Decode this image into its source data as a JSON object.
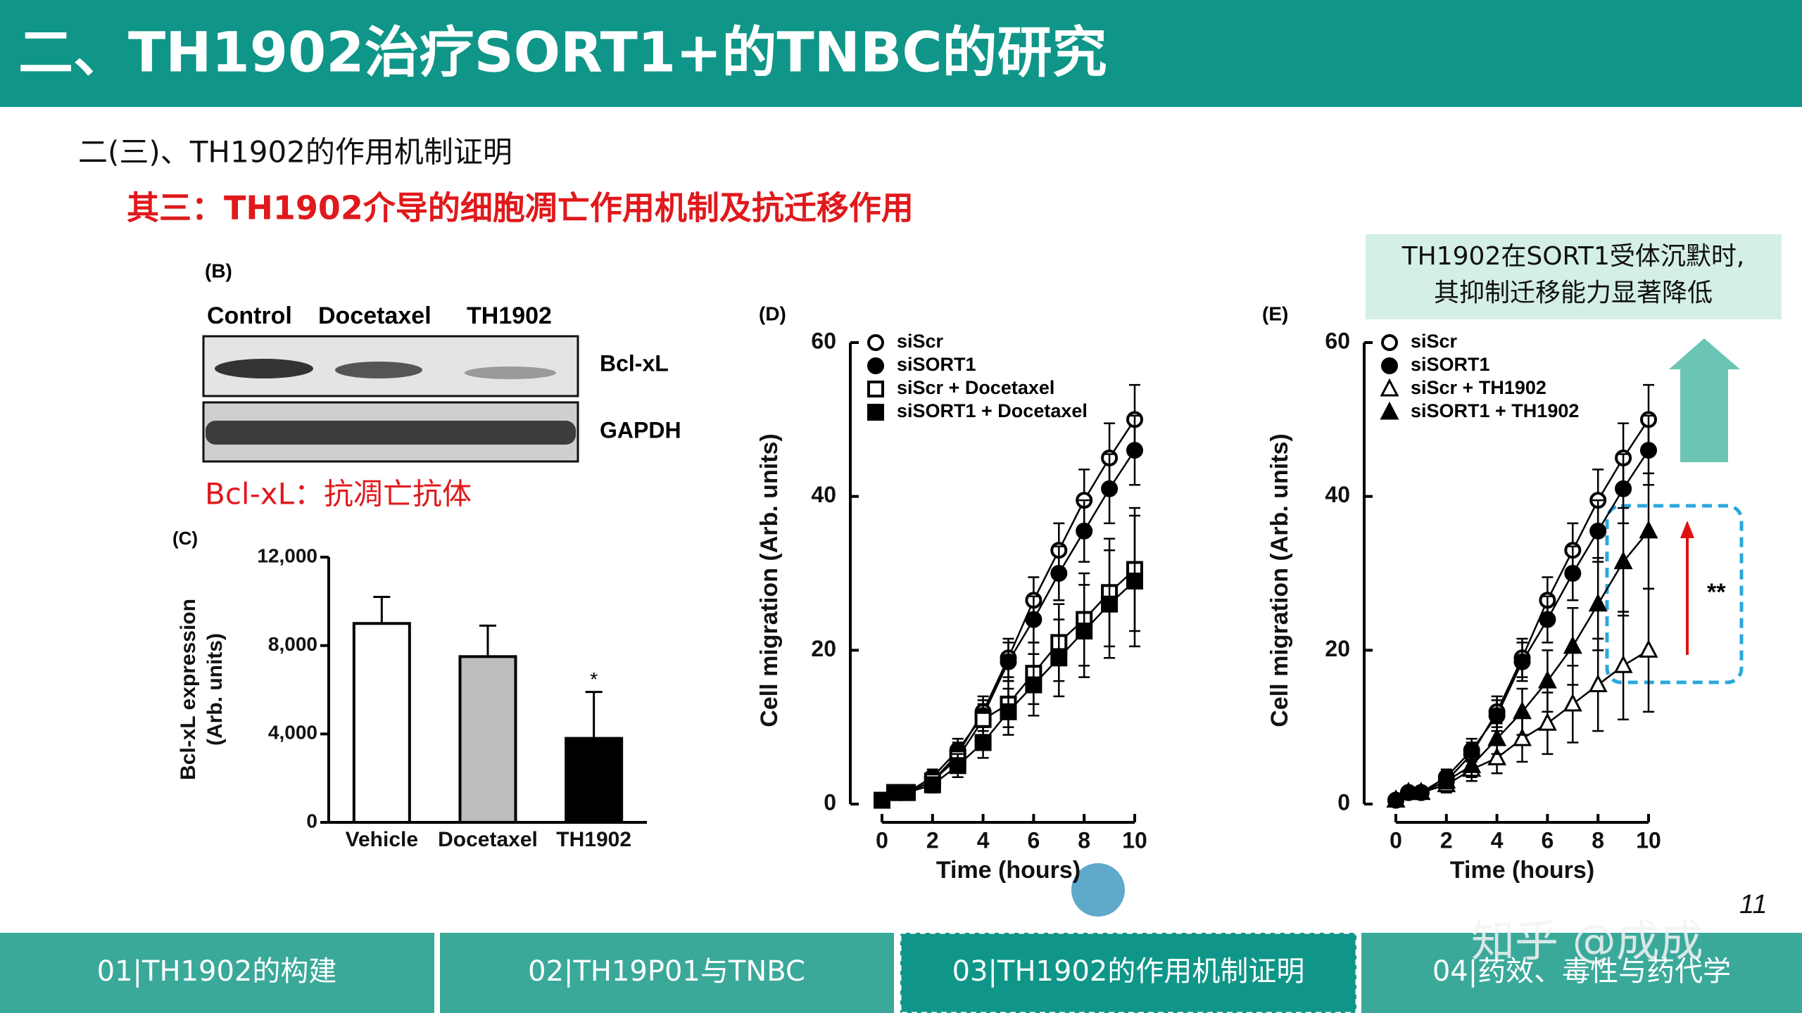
{
  "header": {
    "title": "二、TH1902治疗SORT1+的TNBC的研究"
  },
  "subtitle": "二(三)、TH1902的作用机制证明",
  "heading": "其三：TH1902介导的细胞凋亡作用机制及抗迁移作用",
  "callout": [
    "TH1902在SORT1受体沉默时,",
    "其抑制迁移能力显著降低"
  ],
  "blot": {
    "panel": "(B)",
    "lanes": [
      "Control",
      "Docetaxel",
      "TH1902"
    ],
    "bands": [
      "Bcl-xL",
      "GAPDH"
    ],
    "caption": "Bcl-xL：抗凋亡抗体"
  },
  "chart_data": [
    {
      "type": "bar",
      "panel": "(C)",
      "ylabel": [
        "Bcl-xL expression",
        "(Arb. units)"
      ],
      "categories": [
        "Vehicle",
        "Docetaxel",
        "TH1902"
      ],
      "values": [
        9000,
        7500,
        3800
      ],
      "errors": [
        1200,
        1400,
        2100
      ],
      "colors": [
        "#ffffff",
        "#bdbdbd",
        "#000000"
      ],
      "significance": [
        null,
        null,
        "*"
      ],
      "ylim": [
        0,
        12000
      ],
      "yticks": [
        0,
        {
          "value": 4000,
          "label": "4,000"
        },
        {
          "value": 8000,
          "label": "8,000"
        },
        {
          "value": 12000,
          "label": "12,000"
        }
      ]
    },
    {
      "type": "line",
      "panel": "(D)",
      "xlabel": "Time (hours)",
      "ylabel": "Cell migration (Arb. units)",
      "x": [
        0,
        0.5,
        1,
        2,
        3,
        4,
        5,
        6,
        7,
        8,
        9,
        10
      ],
      "xlim": [
        0,
        10
      ],
      "xticks": [
        0,
        2,
        4,
        6,
        8,
        10
      ],
      "ylim": [
        0,
        60
      ],
      "yticks": [
        0,
        20,
        40,
        60
      ],
      "series": [
        {
          "name": "siScr",
          "marker": "circle-open",
          "color": "#000000",
          "values": [
            0.5,
            1.5,
            1.5,
            3,
            6.5,
            12,
            19,
            26.5,
            33,
            39.5,
            45,
            50
          ],
          "errors": [
            0,
            0,
            0,
            1,
            1.5,
            2,
            2.5,
            3,
            3.5,
            4,
            4.5,
            4.5
          ]
        },
        {
          "name": "siSORT1",
          "marker": "circle-filled",
          "color": "#000000",
          "values": [
            0.5,
            1.5,
            1.5,
            3.5,
            7,
            11.5,
            18.5,
            24,
            30,
            35.5,
            41,
            46
          ],
          "errors": [
            0,
            0,
            0,
            1,
            1.5,
            2,
            2.5,
            3,
            3.5,
            4,
            4.5,
            4.5
          ]
        },
        {
          "name": "siScr + Docetaxel",
          "marker": "square-open",
          "color": "#000000",
          "values": [
            0.5,
            1.5,
            1.5,
            3,
            6,
            11,
            13,
            17,
            21,
            24,
            27.5,
            30.5
          ],
          "errors": [
            0,
            0,
            0,
            1,
            1.5,
            2,
            3,
            4,
            5,
            6,
            7,
            8
          ]
        },
        {
          "name": "siSORT1 + Docetaxel",
          "marker": "square-filled",
          "color": "#000000",
          "values": [
            0.5,
            1.5,
            1.5,
            2.5,
            5,
            8,
            12,
            15.5,
            19,
            22.5,
            26,
            29
          ],
          "errors": [
            0,
            0,
            0,
            1,
            1.5,
            2,
            3,
            4,
            5,
            6,
            7,
            8.5
          ]
        }
      ]
    },
    {
      "type": "line",
      "panel": "(E)",
      "xlabel": "Time (hours)",
      "ylabel": "Cell migration (Arb. units)",
      "x": [
        0,
        0.5,
        1,
        2,
        3,
        4,
        5,
        6,
        7,
        8,
        9,
        10
      ],
      "xlim": [
        0,
        10
      ],
      "xticks": [
        0,
        2,
        4,
        6,
        8,
        10
      ],
      "ylim": [
        0,
        60
      ],
      "yticks": [
        0,
        20,
        40,
        60
      ],
      "annotation": "**",
      "series": [
        {
          "name": "siScr",
          "marker": "circle-open",
          "color": "#000000",
          "values": [
            0.5,
            1.5,
            1.5,
            3,
            6.5,
            12,
            19,
            26.5,
            33,
            39.5,
            45,
            50
          ],
          "errors": [
            0,
            0,
            0,
            1,
            1.5,
            2,
            2.5,
            3,
            3.5,
            4,
            4.5,
            4.5
          ]
        },
        {
          "name": "siSORT1",
          "marker": "circle-filled",
          "color": "#000000",
          "values": [
            0.5,
            1.5,
            1.5,
            3.5,
            7,
            11.5,
            18.5,
            24,
            30,
            35.5,
            41,
            46
          ],
          "errors": [
            0,
            0,
            0,
            1,
            1.5,
            2,
            2.5,
            3,
            3.5,
            4,
            4.5,
            4.5
          ]
        },
        {
          "name": "siScr + TH1902",
          "marker": "triangle-open",
          "color": "#000000",
          "values": [
            0.5,
            1.5,
            1.5,
            2.5,
            4.5,
            6,
            8.5,
            10.5,
            13,
            15.5,
            18,
            20
          ],
          "errors": [
            0,
            0,
            0,
            1,
            1.5,
            2,
            3,
            4,
            5,
            6,
            7,
            8
          ]
        },
        {
          "name": "siSORT1 + TH1902",
          "marker": "triangle-filled",
          "color": "#000000",
          "values": [
            0.5,
            1.5,
            1.5,
            3,
            5,
            8.5,
            12,
            16,
            20.5,
            26,
            31.5,
            35.5
          ],
          "errors": [
            0,
            0,
            0,
            1,
            1.5,
            2,
            3,
            4,
            5,
            6,
            7,
            7.5
          ]
        }
      ]
    }
  ],
  "footer": {
    "tabs": [
      "01|TH1902的构建",
      "02|TH19P01与TNBC",
      "03|TH1902的作用机制证明",
      "04|药效、毒性与药代学"
    ],
    "page": "11"
  },
  "watermark": "知乎 @成成"
}
